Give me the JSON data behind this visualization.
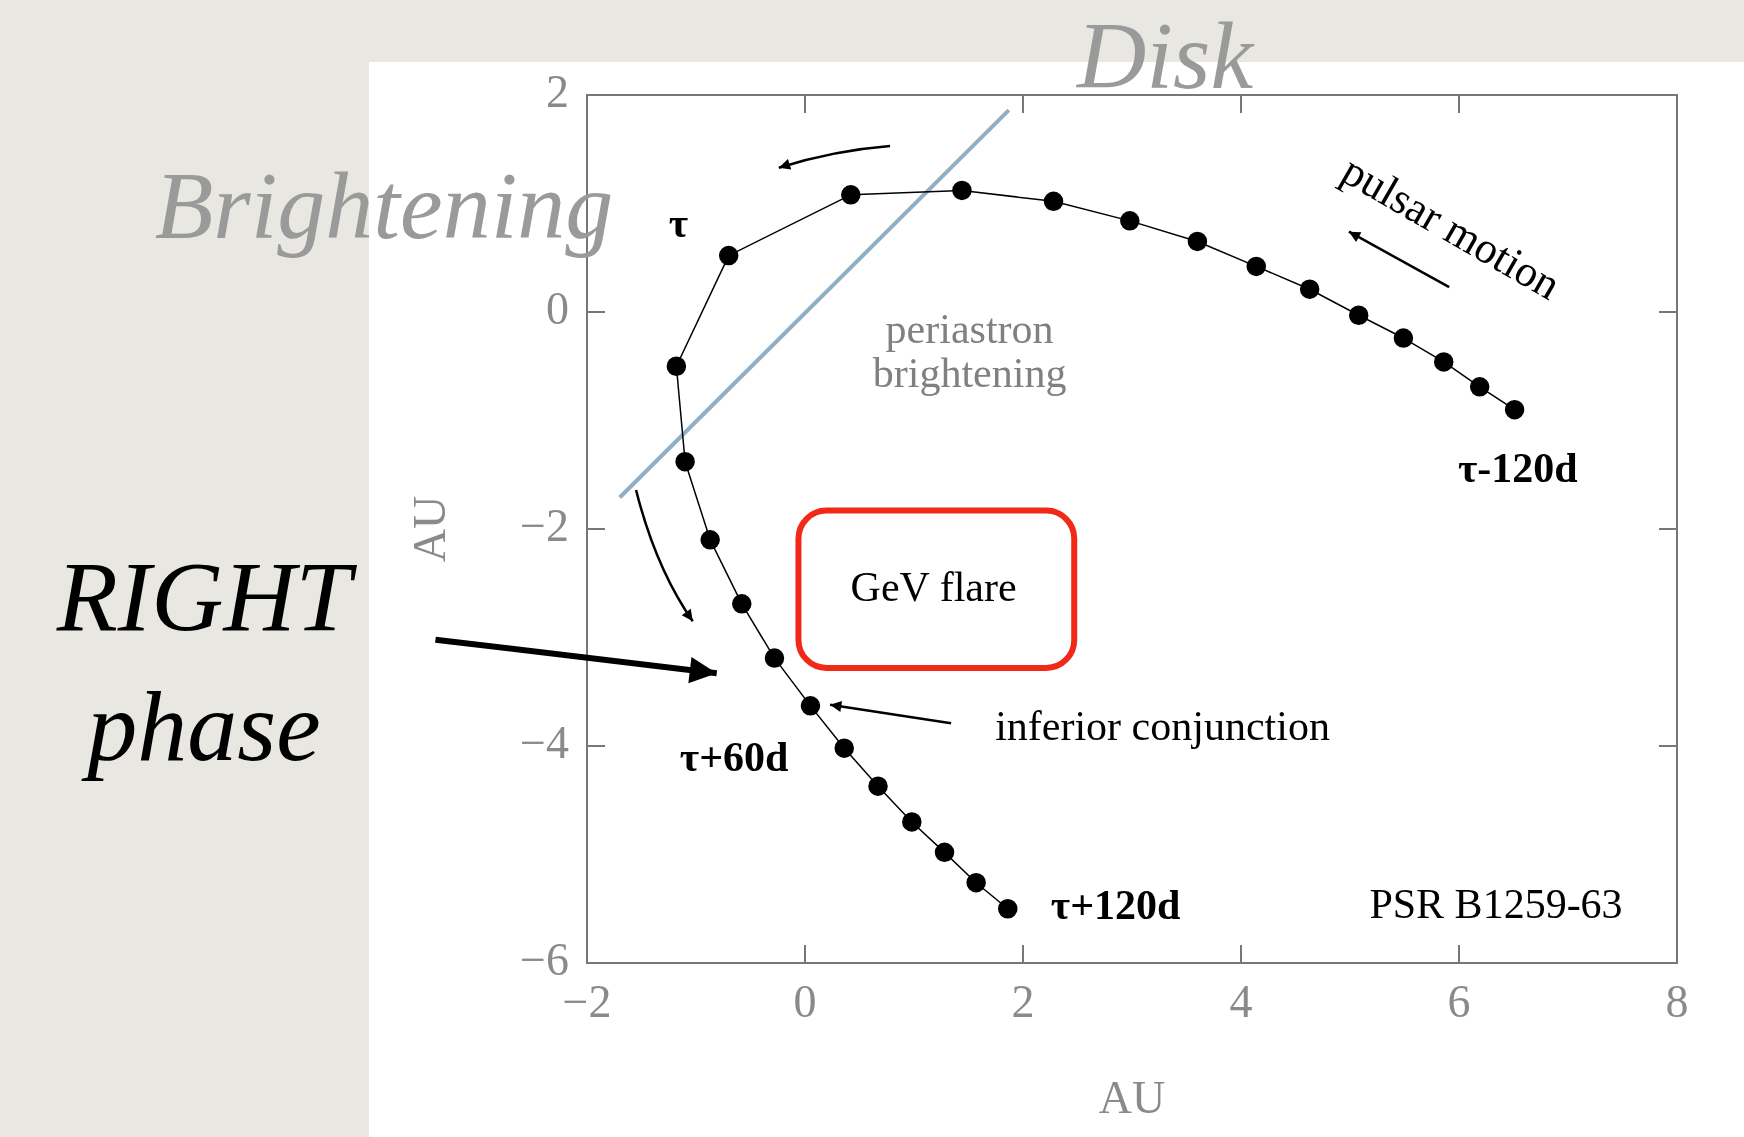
{
  "chart_data": {
    "type": "scatter",
    "xlabel": "AU",
    "ylabel": "AU",
    "xlim": [
      -2,
      8
    ],
    "ylim": [
      -6,
      2
    ],
    "xticks": [
      -2,
      0,
      2,
      4,
      6,
      8
    ],
    "yticks": [
      -6,
      -4,
      -2,
      0,
      2
    ],
    "marker": "circle",
    "series": [
      {
        "type": "line",
        "color": "#000000",
        "x": [
          6.51,
          6.19,
          5.86,
          5.49,
          5.08,
          4.63,
          4.14,
          3.6,
          2.98,
          2.28,
          1.44,
          0.42,
          -0.7,
          -1.18,
          -1.1,
          -0.87,
          -0.58,
          -0.28,
          0.05,
          0.36,
          0.67,
          0.98,
          1.28,
          1.57,
          1.86
        ],
        "values": [
          -0.9,
          -0.69,
          -0.46,
          -0.24,
          -0.03,
          0.21,
          0.42,
          0.65,
          0.84,
          1.02,
          1.12,
          1.08,
          0.52,
          -0.5,
          -1.38,
          -2.1,
          -2.69,
          -3.19,
          -3.63,
          -4.02,
          -4.37,
          -4.7,
          -4.98,
          -5.26,
          -5.5
        ]
      },
      {
        "type": "line",
        "marker": "none",
        "color": "#8fb0c4",
        "x": [
          -1.7,
          1.87
        ],
        "values": [
          -1.71,
          1.86
        ]
      }
    ],
    "annotations": [
      "τ",
      "τ-120d",
      "τ+60d",
      "τ+120d",
      "pulsar motion",
      "periastron brightening",
      "inferior conjunction",
      "GeV flare",
      "PSR B1259-63",
      "Disk",
      "Brightening",
      "RIGHT phase"
    ]
  }
}
